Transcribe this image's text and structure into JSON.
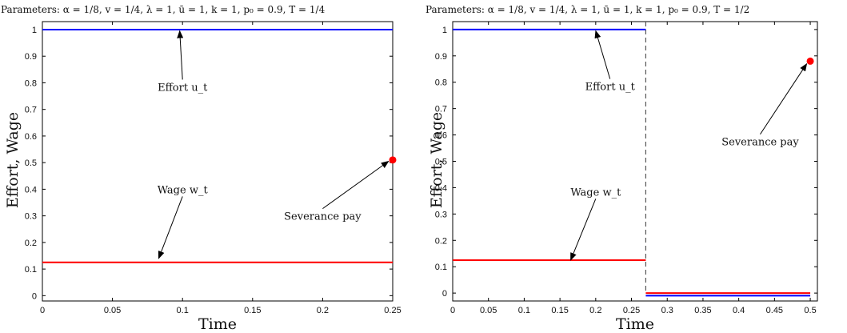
{
  "chart_data": [
    {
      "type": "line",
      "title": "Parameters: α = 1/8, v = 1/4, λ = 1, ū = 1, k = 1, p₀ = 0.9, T = 1/4",
      "xlabel": "Time",
      "ylabel": "Effort, Wage",
      "xlim": [
        0,
        0.25
      ],
      "ylim": [
        -0.02,
        1.03
      ],
      "x_ticks": [
        0,
        0.05,
        0.1,
        0.15,
        0.2,
        0.25
      ],
      "y_ticks": [
        0,
        0.1,
        0.2,
        0.3,
        0.4,
        0.5,
        0.6,
        0.7,
        0.8,
        0.9,
        1
      ],
      "grid": false,
      "series": [
        {
          "name": "Effort u_t",
          "color": "#0000ff",
          "x": [
            0,
            0.25
          ],
          "y": [
            1,
            1
          ]
        },
        {
          "name": "Wage w_t",
          "color": "#ff0000",
          "x": [
            0,
            0.25
          ],
          "y": [
            0.125,
            0.125
          ]
        }
      ],
      "points": [
        {
          "name": "Severance pay",
          "color": "#ff0000",
          "x": 0.25,
          "y": 0.51
        }
      ],
      "annotations": [
        {
          "text": "Effort u_t",
          "tx": 0.1,
          "ty": 0.77,
          "ax": 0.098,
          "ay": 0.995
        },
        {
          "text": "Wage w_t",
          "tx": 0.1,
          "ty": 0.385,
          "ax": 0.083,
          "ay": 0.14
        },
        {
          "text": "Severance pay",
          "tx": 0.2,
          "ty": 0.285,
          "ax": 0.247,
          "ay": 0.505
        }
      ]
    },
    {
      "type": "line",
      "title": "Parameters: α = 1/8, v = 1/4, λ = 1, ū = 1, k = 1, p₀ = 0.9, T = 1/2",
      "xlabel": "Time",
      "ylabel": "Effort, Wage",
      "xlim": [
        0,
        0.51
      ],
      "ylim": [
        -0.03,
        1.03
      ],
      "x_ticks": [
        0,
        0.05,
        0.1,
        0.15,
        0.2,
        0.25,
        0.3,
        0.35,
        0.4,
        0.45,
        0.5
      ],
      "y_ticks": [
        0,
        0.1,
        0.2,
        0.3,
        0.4,
        0.5,
        0.6,
        0.7,
        0.8,
        0.9,
        1
      ],
      "grid": false,
      "series": [
        {
          "name": "Effort u_t",
          "color": "#0000ff",
          "segments": [
            {
              "x": [
                0,
                0.27
              ],
              "y": [
                1,
                1
              ]
            },
            {
              "x": [
                0.27,
                0.5
              ],
              "y": [
                -0.01,
                -0.01
              ]
            }
          ]
        },
        {
          "name": "Wage w_t",
          "color": "#ff0000",
          "segments": [
            {
              "x": [
                0,
                0.27
              ],
              "y": [
                0.125,
                0.125
              ]
            },
            {
              "x": [
                0.27,
                0.5
              ],
              "y": [
                0,
                0
              ]
            }
          ]
        }
      ],
      "vline": {
        "x": 0.27,
        "style": "dashed",
        "color": "#555555"
      },
      "points": [
        {
          "name": "Severance pay",
          "color": "#ff0000",
          "x": 0.5,
          "y": 0.88
        }
      ],
      "annotations": [
        {
          "text": "Effort u_t",
          "tx": 0.22,
          "ty": 0.77,
          "ax": 0.2,
          "ay": 0.995
        },
        {
          "text": "Wage w_t",
          "tx": 0.2,
          "ty": 0.37,
          "ax": 0.165,
          "ay": 0.125
        },
        {
          "text": "Severance pay",
          "tx": 0.43,
          "ty": 0.56,
          "ax": 0.495,
          "ay": 0.87
        }
      ]
    }
  ]
}
